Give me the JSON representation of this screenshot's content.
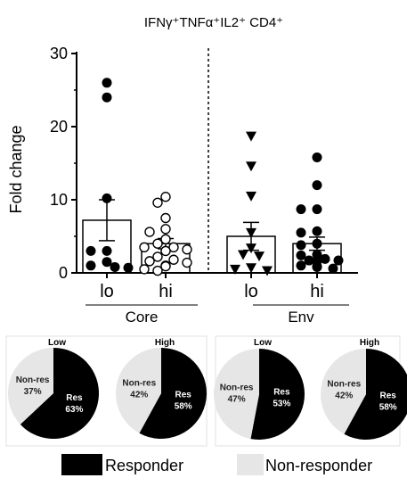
{
  "title": "IFNγ⁺TNFα⁺IL2⁺ CD4⁺",
  "chart_data": [
    {
      "type": "bar",
      "title": "IFNγ⁺TNFα⁺IL2⁺ CD4⁺",
      "ylabel": "Fold change",
      "ylim": [
        0,
        30
      ],
      "yticks": [
        "0",
        "10",
        "20",
        "30"
      ],
      "categories": [
        "lo",
        "hi",
        "lo",
        "hi"
      ],
      "groups": [
        {
          "label": "Core",
          "categories": [
            0,
            1
          ]
        },
        {
          "label": "Env",
          "categories": [
            2,
            3
          ]
        }
      ],
      "divider_between_groups": true,
      "values": [
        7.2,
        4.0,
        5.0,
        4.0
      ],
      "sem": [
        2.8,
        0.7,
        1.9,
        0.9
      ],
      "markers": [
        "filled-circle",
        "open-circle",
        "filled-triangle-down",
        "filled-circle"
      ],
      "points": [
        [
          26.0,
          24.0,
          10.2,
          3.0,
          3.0,
          1.5,
          1.0,
          0.8,
          0.7
        ],
        [
          10.4,
          9.6,
          7.5,
          6.0,
          5.6,
          4.6,
          4.0,
          3.5,
          3.5,
          3.2,
          3.0,
          3.0,
          2.2,
          1.8,
          1.6,
          1.4,
          1.0,
          0.9,
          0.5,
          0.3
        ],
        [
          18.7,
          14.6,
          10.5,
          5.5,
          3.4,
          2.5,
          2.3,
          0.7,
          0.5,
          0.3
        ],
        [
          15.8,
          12.0,
          8.7,
          8.7,
          5.7,
          5.5,
          4.0,
          3.8,
          2.5,
          2.4,
          1.9,
          1.7,
          1.7,
          1.6,
          1.0,
          0.9,
          0.8,
          0.6
        ]
      ]
    },
    {
      "type": "pie",
      "title": "Low",
      "group": "Core",
      "slices": [
        {
          "label": "Res",
          "value": 63,
          "text": "63%",
          "color": "#000000"
        },
        {
          "label": "Non-res",
          "value": 37,
          "text": "37%",
          "color": "#e6e6e6"
        }
      ]
    },
    {
      "type": "pie",
      "title": "High",
      "group": "Core",
      "slices": [
        {
          "label": "Res",
          "value": 58,
          "text": "58%",
          "color": "#000000"
        },
        {
          "label": "Non-res",
          "value": 42,
          "text": "42%",
          "color": "#e6e6e6"
        }
      ]
    },
    {
      "type": "pie",
      "title": "Low",
      "group": "Env",
      "slices": [
        {
          "label": "Res",
          "value": 53,
          "text": "53%",
          "color": "#000000"
        },
        {
          "label": "Non-res",
          "value": 47,
          "text": "47%",
          "color": "#e6e6e6"
        }
      ]
    },
    {
      "type": "pie",
      "title": "High",
      "group": "Env",
      "slices": [
        {
          "label": "Res",
          "value": 58,
          "text": "58%",
          "color": "#000000"
        },
        {
          "label": "Non-res",
          "value": 42,
          "text": "42%",
          "color": "#e6e6e6"
        }
      ]
    }
  ],
  "legend": [
    {
      "label": "Responder",
      "color": "#000000"
    },
    {
      "label": "Non-responder",
      "color": "#e6e6e6"
    }
  ]
}
